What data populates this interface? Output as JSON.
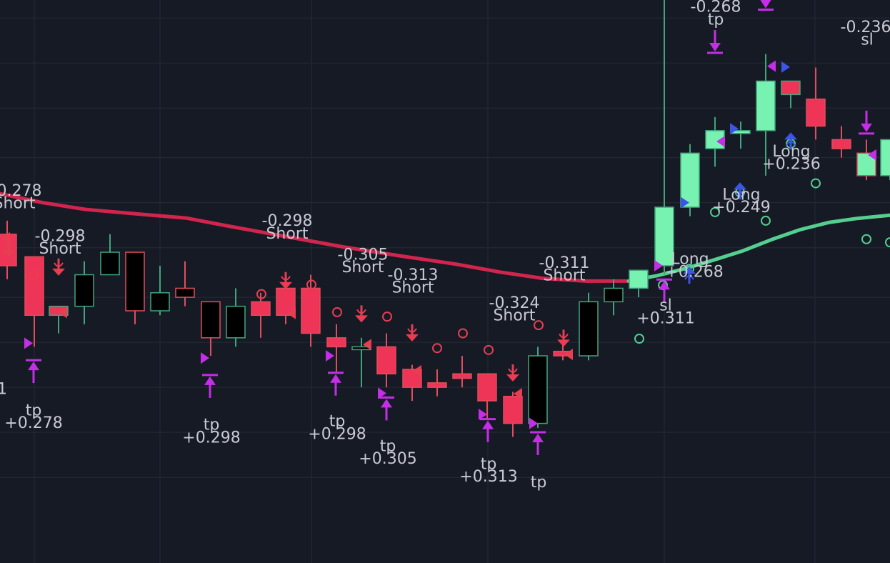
{
  "colors": {
    "background": "#161a25",
    "grid": "#252a37",
    "bull_fill": "#78f2b0",
    "bull_border": "#43a47c",
    "bear_fill": "#ee3557",
    "bear_border": "#e04d5c",
    "hollow_fill": "#000000",
    "ma_line_bear": "#d1254d",
    "ma_line_bull": "#54cf8f",
    "short_marker": "#e93d52",
    "long_marker": "#3c55e6",
    "exit_marker": "#c42ee6",
    "label_text": "#c8cad3"
  },
  "chart_data": {
    "type": "candlestick",
    "title": "",
    "xlabel": "",
    "ylabel": "",
    "grid": true,
    "ylim": [
      0.22,
      0.345
    ],
    "candles": [
      {
        "x": 10,
        "o": 0.293,
        "h": 0.296,
        "l": 0.283,
        "c": 0.286,
        "style": "bear"
      },
      {
        "x": 48,
        "o": 0.288,
        "h": 0.288,
        "l": 0.268,
        "c": 0.275,
        "style": "bear"
      },
      {
        "x": 82,
        "o": 0.275,
        "h": 0.277,
        "l": 0.271,
        "c": 0.277,
        "style": "bear"
      },
      {
        "x": 118,
        "o": 0.277,
        "h": 0.287,
        "l": 0.273,
        "c": 0.284,
        "style": "hollow"
      },
      {
        "x": 154,
        "o": 0.284,
        "h": 0.293,
        "l": 0.284,
        "c": 0.289,
        "style": "hollow"
      },
      {
        "x": 189,
        "o": 0.289,
        "h": 0.289,
        "l": 0.273,
        "c": 0.276,
        "style": "hollow"
      },
      {
        "x": 224,
        "o": 0.276,
        "h": 0.286,
        "l": 0.275,
        "c": 0.28,
        "style": "hollow"
      },
      {
        "x": 259,
        "o": 0.281,
        "h": 0.287,
        "l": 0.277,
        "c": 0.279,
        "style": "hollow"
      },
      {
        "x": 295,
        "o": 0.278,
        "h": 0.278,
        "l": 0.266,
        "c": 0.27,
        "style": "hollow"
      },
      {
        "x": 330,
        "o": 0.27,
        "h": 0.281,
        "l": 0.268,
        "c": 0.277,
        "style": "hollow"
      },
      {
        "x": 365,
        "o": 0.278,
        "h": 0.28,
        "l": 0.27,
        "c": 0.275,
        "style": "bear"
      },
      {
        "x": 400,
        "o": 0.281,
        "h": 0.283,
        "l": 0.273,
        "c": 0.275,
        "style": "bear"
      },
      {
        "x": 435,
        "o": 0.281,
        "h": 0.284,
        "l": 0.268,
        "c": 0.271,
        "style": "bear"
      },
      {
        "x": 471,
        "o": 0.27,
        "h": 0.273,
        "l": 0.262,
        "c": 0.268,
        "style": "bear"
      },
      {
        "x": 506,
        "o": 0.268,
        "h": 0.27,
        "l": 0.259,
        "c": 0.268,
        "style": "hollow"
      },
      {
        "x": 541,
        "o": 0.268,
        "h": 0.271,
        "l": 0.259,
        "c": 0.262,
        "style": "bear"
      },
      {
        "x": 577,
        "o": 0.263,
        "h": 0.264,
        "l": 0.256,
        "c": 0.259,
        "style": "bear"
      },
      {
        "x": 612,
        "o": 0.26,
        "h": 0.263,
        "l": 0.257,
        "c": 0.259,
        "style": "bear"
      },
      {
        "x": 647,
        "o": 0.262,
        "h": 0.266,
        "l": 0.259,
        "c": 0.261,
        "style": "bear"
      },
      {
        "x": 682,
        "o": 0.262,
        "h": 0.262,
        "l": 0.252,
        "c": 0.256,
        "style": "bear"
      },
      {
        "x": 718,
        "o": 0.257,
        "h": 0.258,
        "l": 0.248,
        "c": 0.251,
        "style": "bear"
      },
      {
        "x": 753,
        "o": 0.251,
        "h": 0.268,
        "l": 0.25,
        "c": 0.266,
        "style": "hollow"
      },
      {
        "x": 788,
        "o": 0.267,
        "h": 0.269,
        "l": 0.265,
        "c": 0.266,
        "style": "bear"
      },
      {
        "x": 824,
        "o": 0.266,
        "h": 0.28,
        "l": 0.265,
        "c": 0.278,
        "style": "hollow"
      },
      {
        "x": 859,
        "o": 0.278,
        "h": 0.283,
        "l": 0.275,
        "c": 0.281,
        "style": "hollow"
      },
      {
        "x": 894,
        "o": 0.281,
        "h": 0.285,
        "l": 0.279,
        "c": 0.285,
        "style": "bull"
      },
      {
        "x": 930,
        "o": 0.286,
        "h": 0.345,
        "l": 0.284,
        "c": 0.299,
        "style": "bull"
      },
      {
        "x": 966,
        "o": 0.299,
        "h": 0.313,
        "l": 0.297,
        "c": 0.311,
        "style": "bull"
      },
      {
        "x": 1001,
        "o": 0.312,
        "h": 0.319,
        "l": 0.308,
        "c": 0.316,
        "style": "bull"
      },
      {
        "x": 1037,
        "o": 0.316,
        "h": 0.318,
        "l": 0.312,
        "c": 0.316,
        "style": "bull"
      },
      {
        "x": 1072,
        "o": 0.316,
        "h": 0.333,
        "l": 0.306,
        "c": 0.327,
        "style": "bull"
      },
      {
        "x": 1107,
        "o": 0.324,
        "h": 0.327,
        "l": 0.321,
        "c": 0.327,
        "style": "bear"
      },
      {
        "x": 1142,
        "o": 0.323,
        "h": 0.33,
        "l": 0.314,
        "c": 0.317,
        "style": "bear"
      },
      {
        "x": 1178,
        "o": 0.314,
        "h": 0.317,
        "l": 0.31,
        "c": 0.312,
        "style": "bear"
      },
      {
        "x": 1213,
        "o": 0.311,
        "h": 0.314,
        "l": 0.305,
        "c": 0.306,
        "style": "bull"
      },
      {
        "x": 1246,
        "o": 0.306,
        "h": 0.314,
        "l": 0.305,
        "c": 0.314,
        "style": "bull"
      }
    ],
    "ma_line_bear": [
      [
        0,
        0.302
      ],
      [
        60,
        0.3
      ],
      [
        120,
        0.2985
      ],
      [
        200,
        0.2974
      ],
      [
        260,
        0.2966
      ],
      [
        320,
        0.2948
      ],
      [
        400,
        0.2925
      ],
      [
        480,
        0.2902
      ],
      [
        560,
        0.2882
      ],
      [
        640,
        0.2863
      ],
      [
        700,
        0.2846
      ],
      [
        760,
        0.2832
      ],
      [
        820,
        0.2826
      ],
      [
        880,
        0.2826
      ]
    ],
    "ma_line_bull": [
      [
        880,
        0.2826
      ],
      [
        920,
        0.2838
      ],
      [
        960,
        0.2854
      ],
      [
        1000,
        0.2873
      ],
      [
        1040,
        0.2893
      ],
      [
        1080,
        0.2918
      ],
      [
        1120,
        0.294
      ],
      [
        1160,
        0.2956
      ],
      [
        1200,
        0.2965
      ],
      [
        1246,
        0.2972
      ]
    ],
    "circles": [
      {
        "x": 47,
        "y": 0.2838,
        "color": "bear"
      },
      {
        "x": 366,
        "y": 0.2797,
        "color": "bear"
      },
      {
        "x": 436,
        "y": 0.2818,
        "color": "bear"
      },
      {
        "x": 472,
        "y": 0.2757,
        "color": "bear"
      },
      {
        "x": 542,
        "y": 0.2747,
        "color": "bear"
      },
      {
        "x": 612,
        "y": 0.2677,
        "color": "bear"
      },
      {
        "x": 648,
        "y": 0.271,
        "color": "bear"
      },
      {
        "x": 684,
        "y": 0.2673,
        "color": "bear"
      },
      {
        "x": 754,
        "y": 0.2728,
        "color": "bear"
      },
      {
        "x": 895,
        "y": 0.2698,
        "color": "bull"
      },
      {
        "x": 928,
        "y": 0.2817,
        "color": "bull"
      },
      {
        "x": 965,
        "y": 0.2853,
        "color": "bull"
      },
      {
        "x": 1001,
        "y": 0.2979,
        "color": "bull"
      },
      {
        "x": 1036,
        "y": 0.3023,
        "color": "bull"
      },
      {
        "x": 1072,
        "y": 0.296,
        "color": "bull"
      },
      {
        "x": 1107,
        "y": 0.3131,
        "color": "bull"
      },
      {
        "x": 1142,
        "y": 0.3043,
        "color": "bull"
      },
      {
        "x": 1213,
        "y": 0.2919,
        "color": "bull"
      },
      {
        "x": 1246,
        "y": 0.2912,
        "color": "bull"
      }
    ],
    "signals": [
      {
        "kind": "short",
        "x": 12,
        "y": 0.2898
      },
      {
        "kind": "short",
        "x": 82,
        "y": 0.2857
      },
      {
        "kind": "short",
        "x": 400,
        "y": 0.2827
      },
      {
        "kind": "short",
        "x": 506,
        "y": 0.2753
      },
      {
        "kind": "short",
        "x": 577,
        "y": 0.2711
      },
      {
        "kind": "short",
        "x": 718,
        "y": 0.2622
      },
      {
        "kind": "short",
        "x": 789,
        "y": 0.2699
      },
      {
        "kind": "long",
        "x": 965,
        "y": 0.2839
      },
      {
        "kind": "long",
        "x": 1036,
        "y": 0.3026
      },
      {
        "kind": "long",
        "x": 1107,
        "y": 0.3137
      },
      {
        "kind": "exit_up",
        "x": 47,
        "y": 0.2625
      },
      {
        "kind": "exit_up",
        "x": 294,
        "y": 0.2592
      },
      {
        "kind": "exit_up",
        "x": 470,
        "y": 0.2597
      },
      {
        "kind": "exit_up",
        "x": 541,
        "y": 0.2542
      },
      {
        "kind": "exit_up",
        "x": 683,
        "y": 0.2494
      },
      {
        "kind": "exit_up",
        "x": 753,
        "y": 0.2465
      },
      {
        "kind": "exit_up",
        "x": 930,
        "y": 0.2804
      },
      {
        "kind": "exit_down",
        "x": 1001,
        "y": 0.3358
      },
      {
        "kind": "exit_down",
        "x": 1072,
        "y": 0.3454
      },
      {
        "kind": "exit_down",
        "x": 1213,
        "y": 0.3179
      }
    ],
    "small_triangles": [
      {
        "x": 10,
        "y": 0.2922,
        "dir": "left",
        "color": "short"
      },
      {
        "x": 38,
        "y": 0.2688,
        "dir": "right",
        "color": "exit"
      },
      {
        "x": 90,
        "y": 0.2756,
        "dir": "left",
        "color": "short"
      },
      {
        "x": 285,
        "y": 0.2655,
        "dir": "right",
        "color": "exit"
      },
      {
        "x": 410,
        "y": 0.2754,
        "dir": "left",
        "color": "short"
      },
      {
        "x": 460,
        "y": 0.266,
        "dir": "right",
        "color": "exit"
      },
      {
        "x": 516,
        "y": 0.2685,
        "dir": "left",
        "color": "short"
      },
      {
        "x": 533,
        "y": 0.2577,
        "dir": "right",
        "color": "exit"
      },
      {
        "x": 586,
        "y": 0.2627,
        "dir": "left",
        "color": "short"
      },
      {
        "x": 674,
        "y": 0.253,
        "dir": "right",
        "color": "exit"
      },
      {
        "x": 727,
        "y": 0.2576,
        "dir": "left",
        "color": "short"
      },
      {
        "x": 745,
        "y": 0.251,
        "dir": "right",
        "color": "exit"
      },
      {
        "x": 798,
        "y": 0.2663,
        "dir": "left",
        "color": "short"
      },
      {
        "x": 920,
        "y": 0.286,
        "dir": "right",
        "color": "exit"
      },
      {
        "x": 957,
        "y": 0.3,
        "dir": "right",
        "color": "long"
      },
      {
        "x": 1011,
        "y": 0.3136,
        "dir": "left",
        "color": "exit"
      },
      {
        "x": 1026,
        "y": 0.3164,
        "dir": "right",
        "color": "long"
      },
      {
        "x": 1082,
        "y": 0.3303,
        "dir": "left",
        "color": "exit"
      },
      {
        "x": 1098,
        "y": 0.3301,
        "dir": "right",
        "color": "long"
      },
      {
        "x": 1223,
        "y": 0.3106,
        "dir": "left",
        "color": "exit"
      }
    ],
    "annotations": [
      {
        "x": 23,
        "y": 0.3025,
        "text": "-0.278"
      },
      {
        "x": 20,
        "y": 0.2997,
        "text": "Short"
      },
      {
        "x": 84,
        "y": 0.2924,
        "text": "-0.298"
      },
      {
        "x": 84,
        "y": 0.2896,
        "text": "Short"
      },
      {
        "x": 402,
        "y": 0.2958,
        "text": "-0.298"
      },
      {
        "x": 402,
        "y": 0.293,
        "text": "Short"
      },
      {
        "x": 508,
        "y": 0.2883,
        "text": "-0.305"
      },
      {
        "x": 508,
        "y": 0.2855,
        "text": "Short"
      },
      {
        "x": 578,
        "y": 0.2838,
        "text": "-0.313"
      },
      {
        "x": 578,
        "y": 0.281,
        "text": "Short"
      },
      {
        "x": 720,
        "y": 0.2776,
        "text": "-0.324"
      },
      {
        "x": 720,
        "y": 0.2748,
        "text": "Short"
      },
      {
        "x": 790,
        "y": 0.2865,
        "text": "-0.311"
      },
      {
        "x": 790,
        "y": 0.2837,
        "text": "Short"
      },
      {
        "x": 3,
        "y": 0.2585,
        "text": "1"
      },
      {
        "x": 47,
        "y": 0.2537,
        "text": "tp"
      },
      {
        "x": 47,
        "y": 0.2509,
        "text": "+0.278"
      },
      {
        "x": 296,
        "y": 0.2505,
        "text": "tp"
      },
      {
        "x": 296,
        "y": 0.2477,
        "text": "+0.298"
      },
      {
        "x": 472,
        "y": 0.2513,
        "text": "tp"
      },
      {
        "x": 472,
        "y": 0.2485,
        "text": "+0.298"
      },
      {
        "x": 543,
        "y": 0.2458,
        "text": "tp"
      },
      {
        "x": 543,
        "y": 0.243,
        "text": "+0.305"
      },
      {
        "x": 684,
        "y": 0.2418,
        "text": "tp"
      },
      {
        "x": 684,
        "y": 0.239,
        "text": "+0.313"
      },
      {
        "x": 754,
        "y": 0.2378,
        "text": "tp"
      },
      {
        "x": 932,
        "y": 0.277,
        "text": "sl"
      },
      {
        "x": 932,
        "y": 0.2742,
        "text": "+0.311"
      },
      {
        "x": 1038,
        "y": 0.3016,
        "text": "Long"
      },
      {
        "x": 1038,
        "y": 0.2988,
        "text": "+0.249"
      },
      {
        "x": 1108,
        "y": 0.3112,
        "text": "Long"
      },
      {
        "x": 1108,
        "y": 0.3084,
        "text": "+0.236"
      },
      {
        "x": 966,
        "y": 0.2873,
        "text": "Long"
      },
      {
        "x": 972,
        "y": 0.2845,
        "text": "+0.268"
      },
      {
        "x": 1002,
        "y": 0.3433,
        "text": "-0.268"
      },
      {
        "x": 1002,
        "y": 0.3405,
        "text": "tp"
      },
      {
        "x": 1212,
        "y": 0.3388,
        "text": "-0.236"
      },
      {
        "x": 1214,
        "y": 0.336,
        "text": "sl"
      }
    ],
    "x_grid": [
      48,
      224,
      436,
      683,
      930,
      1141
    ],
    "y_grid": [
      0.341,
      0.331,
      0.321,
      0.31,
      0.3,
      0.29,
      0.279,
      0.269,
      0.259,
      0.249,
      0.239
    ]
  }
}
